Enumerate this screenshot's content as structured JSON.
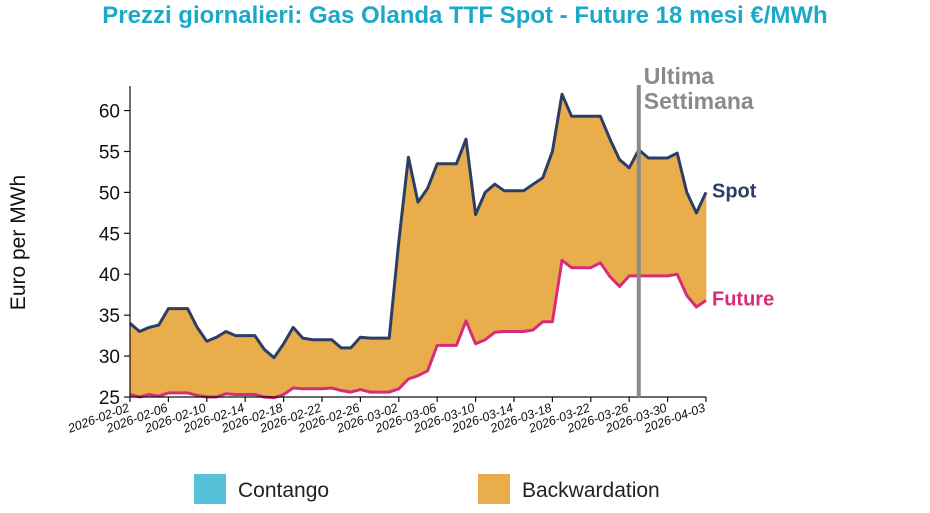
{
  "chart_data": {
    "type": "area",
    "title": "Prezzi giornalieri: Gas Olanda TTF Spot - Future 18 mesi €/MWh",
    "ylabel": "Euro per MWh",
    "xlabel": "",
    "ylim": [
      25,
      63
    ],
    "yticks": [
      25,
      30,
      35,
      40,
      45,
      50,
      55,
      60
    ],
    "x_tick_labels": [
      "2026-02-02",
      "2026-02-06",
      "2026-02-10",
      "2026-02-14",
      "2026-02-18",
      "2026-02-22",
      "2026-02-26",
      "2026-03-02",
      "2026-03-06",
      "2026-03-10",
      "2026-03-14",
      "2026-03-18",
      "2026-03-22",
      "2026-03-26",
      "2026-03-30",
      "2026-04-03"
    ],
    "x": [
      "2026-02-02",
      "2026-02-03",
      "2026-02-04",
      "2026-02-05",
      "2026-02-06",
      "2026-02-07",
      "2026-02-08",
      "2026-02-09",
      "2026-02-10",
      "2026-02-11",
      "2026-02-12",
      "2026-02-13",
      "2026-02-14",
      "2026-02-15",
      "2026-02-16",
      "2026-02-17",
      "2026-02-18",
      "2026-02-19",
      "2026-02-20",
      "2026-02-21",
      "2026-02-22",
      "2026-02-23",
      "2026-02-24",
      "2026-02-25",
      "2026-02-26",
      "2026-02-27",
      "2026-02-28",
      "2026-03-01",
      "2026-03-02",
      "2026-03-03",
      "2026-03-04",
      "2026-03-05",
      "2026-03-06",
      "2026-03-07",
      "2026-03-08",
      "2026-03-09",
      "2026-03-10",
      "2026-03-11",
      "2026-03-12",
      "2026-03-13",
      "2026-03-14",
      "2026-03-15",
      "2026-03-16",
      "2026-03-17",
      "2026-03-18",
      "2026-03-19",
      "2026-03-20",
      "2026-03-21",
      "2026-03-22",
      "2026-03-23",
      "2026-03-24",
      "2026-03-25",
      "2026-03-26",
      "2026-03-27",
      "2026-03-28",
      "2026-03-29",
      "2026-03-30",
      "2026-03-31",
      "2026-04-01",
      "2026-04-02",
      "2026-04-03"
    ],
    "series": [
      {
        "name": "Spot",
        "color": "#2c3e64",
        "values": [
          34.0,
          33.0,
          33.5,
          33.8,
          35.8,
          35.8,
          35.8,
          33.5,
          31.8,
          32.3,
          33.0,
          32.5,
          32.5,
          32.5,
          30.8,
          29.8,
          31.5,
          33.5,
          32.2,
          32.0,
          32.0,
          32.0,
          31.0,
          31.0,
          32.3,
          32.2,
          32.2,
          32.2,
          44.0,
          54.3,
          48.8,
          50.5,
          53.5,
          53.5,
          53.5,
          56.5,
          47.3,
          50.0,
          51.0,
          50.2,
          50.2,
          50.2,
          51.0,
          51.8,
          55.0,
          62.0,
          59.3,
          59.3,
          59.3,
          59.3,
          56.5,
          54.0,
          53.0,
          55.2,
          54.2,
          54.2,
          54.2,
          54.8,
          50.0,
          47.5,
          50.0
        ]
      },
      {
        "name": "Future",
        "color": "#d62d7a",
        "values": [
          25.3,
          25.0,
          25.3,
          25.1,
          25.5,
          25.5,
          25.5,
          25.2,
          25.0,
          25.0,
          25.4,
          25.3,
          25.3,
          25.3,
          25.0,
          24.9,
          25.3,
          26.1,
          26.0,
          26.0,
          26.0,
          26.1,
          25.8,
          25.6,
          25.9,
          25.6,
          25.6,
          25.6,
          26.0,
          27.2,
          27.6,
          28.2,
          31.3,
          31.3,
          31.3,
          34.3,
          31.5,
          32.0,
          32.9,
          33.0,
          33.0,
          33.0,
          33.2,
          34.2,
          34.2,
          41.7,
          40.8,
          40.8,
          40.8,
          41.4,
          39.7,
          38.5,
          39.8,
          39.8,
          39.8,
          39.8,
          39.8,
          40.0,
          37.4,
          36.0,
          36.8
        ]
      }
    ],
    "fill_colors": {
      "contango": "#55c2da",
      "backwardation": "#e9ad4c"
    },
    "annotation": {
      "line1": "Ultima",
      "line2": "Settimana",
      "date": "2026-03-27",
      "color": "#8a8a8a"
    },
    "legend": {
      "placement": "bottom",
      "items": [
        {
          "label": "Contango",
          "color": "#55c2da"
        },
        {
          "label": "Backwardation",
          "color": "#e9ad4c"
        }
      ]
    },
    "title_color": "#1ca9c9",
    "grid": false
  }
}
